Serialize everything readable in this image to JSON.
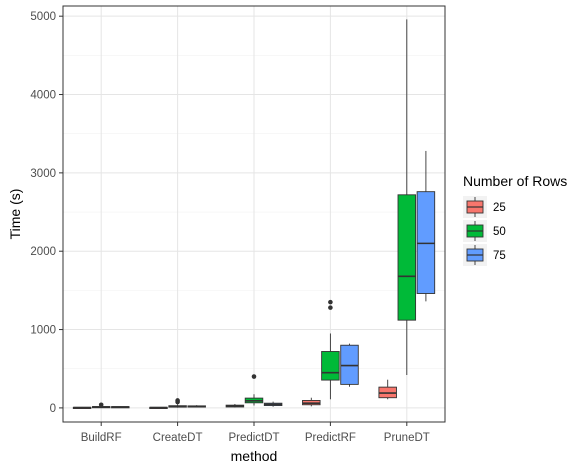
{
  "chart_data": {
    "type": "boxplot",
    "title": "",
    "xlabel": "method",
    "ylabel": "Time (s)",
    "ylim": [
      -180,
      5130
    ],
    "yticks": [
      0,
      1000,
      2000,
      3000,
      4000,
      5000
    ],
    "yticklabels": [
      "0",
      "1000",
      "2000",
      "3000",
      "4000",
      "5000"
    ],
    "grid": true,
    "categories": [
      "BuildRF",
      "CreateDT",
      "PredictDT",
      "PredictRF",
      "PruneDT"
    ],
    "legend": {
      "title": "Number of Rows",
      "placement": "right",
      "entries": [
        "25",
        "50",
        "75"
      ]
    },
    "series": [
      {
        "name": "25",
        "color": "#F8766D",
        "boxes": [
          {
            "category": "BuildRF",
            "min": 0,
            "q1": 2,
            "median": 4,
            "q3": 7,
            "max": 12,
            "outliers": []
          },
          {
            "category": "CreateDT",
            "min": 0,
            "q1": 2,
            "median": 4,
            "q3": 7,
            "max": 12,
            "outliers": []
          },
          {
            "category": "PredictDT",
            "min": 5,
            "q1": 12,
            "median": 22,
            "q3": 35,
            "max": 50,
            "outliers": []
          },
          {
            "category": "PredictRF",
            "min": 20,
            "q1": 40,
            "median": 60,
            "q3": 95,
            "max": 130,
            "outliers": []
          },
          {
            "category": "PruneDT",
            "min": 110,
            "q1": 130,
            "median": 190,
            "q3": 265,
            "max": 360,
            "outliers": []
          }
        ]
      },
      {
        "name": "50",
        "color": "#00BA38",
        "boxes": [
          {
            "category": "BuildRF",
            "min": 3,
            "q1": 8,
            "median": 12,
            "q3": 17,
            "max": 22,
            "outliers": [
              40
            ]
          },
          {
            "category": "CreateDT",
            "min": 3,
            "q1": 10,
            "median": 18,
            "q3": 28,
            "max": 45,
            "outliers": [
              75,
              95
            ]
          },
          {
            "category": "PredictDT",
            "min": 30,
            "q1": 65,
            "median": 90,
            "q3": 125,
            "max": 175,
            "outliers": [
              400
            ]
          },
          {
            "category": "PredictRF",
            "min": 110,
            "q1": 355,
            "median": 450,
            "q3": 720,
            "max": 950,
            "outliers": [
              1280,
              1350
            ]
          },
          {
            "category": "PruneDT",
            "min": 420,
            "q1": 1120,
            "median": 1680,
            "q3": 2720,
            "max": 4960,
            "outliers": []
          }
        ]
      },
      {
        "name": "75",
        "color": "#619CFF",
        "boxes": [
          {
            "category": "BuildRF",
            "min": 4,
            "q1": 8,
            "median": 12,
            "q3": 16,
            "max": 20,
            "outliers": []
          },
          {
            "category": "CreateDT",
            "min": 5,
            "q1": 12,
            "median": 18,
            "q3": 26,
            "max": 35,
            "outliers": []
          },
          {
            "category": "PredictDT",
            "min": 15,
            "q1": 30,
            "median": 45,
            "q3": 60,
            "max": 80,
            "outliers": []
          },
          {
            "category": "PredictRF",
            "min": 270,
            "q1": 300,
            "median": 540,
            "q3": 800,
            "max": 820,
            "outliers": []
          },
          {
            "category": "PruneDT",
            "min": 1360,
            "q1": 1460,
            "median": 2100,
            "q3": 2760,
            "max": 3280,
            "outliers": []
          }
        ]
      }
    ]
  }
}
